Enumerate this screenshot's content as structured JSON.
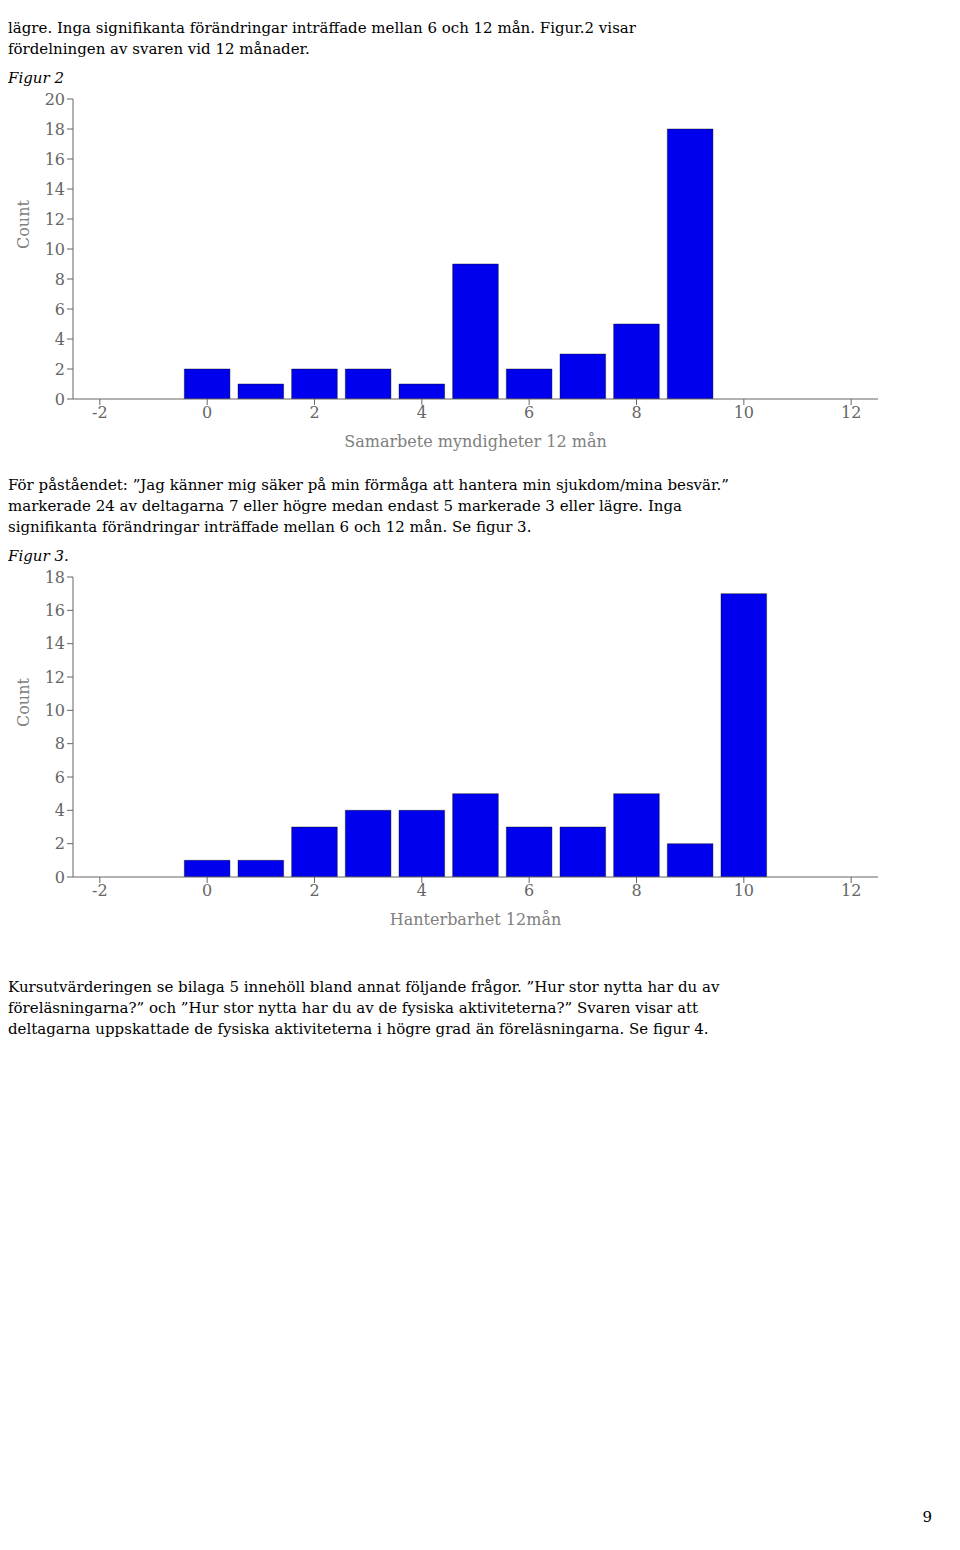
{
  "chart_data": [
    {
      "type": "bar",
      "annotations": [
        "lägre. Inga signifikanta förändringar inträffade mellan 6 och 12 mån. Figur.2 visar",
        "fördelningen av svaren vid 12 månader."
      ],
      "title": "Figur 2",
      "xlabel": "Samarbete myndigheter 12 mån",
      "ylabel": "Count",
      "x": [
        0,
        1,
        2,
        3,
        4,
        5,
        6,
        7,
        8,
        9,
        10
      ],
      "values": [
        2,
        1,
        2,
        2,
        1,
        9,
        2,
        3,
        5,
        18,
        0
      ],
      "color": "#0000EE",
      "xlim": [
        -2.5,
        12.5
      ],
      "ylim": [
        0,
        20
      ],
      "xticks": [
        -2,
        0,
        2,
        4,
        6,
        8,
        10,
        12
      ],
      "yticks": [
        0,
        2,
        4,
        6,
        8,
        10,
        12,
        14,
        16,
        18,
        20
      ],
      "grid": false
    },
    {
      "type": "bar",
      "annotations": [
        "För påståendet: ”Jag känner mig säker på min förmåga att hantera min sjukdom/mina besvär.”",
        "markerade 24 av deltagarna 7 eller högre medan endast 5 markerade 3 eller lägre. Inga",
        "signifikanta förändringar inträffade mellan 6 och 12 mån. Se figur 3."
      ],
      "title": "Figur 3.",
      "xlabel": "Hanterbarhet 12mån",
      "ylabel": "Count",
      "x": [
        0,
        1,
        2,
        3,
        4,
        5,
        6,
        7,
        8,
        9,
        10
      ],
      "values": [
        1,
        1,
        3,
        4,
        4,
        5,
        3,
        3,
        5,
        2,
        17
      ],
      "color": "#0000EE",
      "xlim": [
        -2.5,
        12.5
      ],
      "ylim": [
        0,
        18
      ],
      "xticks": [
        -2,
        0,
        2,
        4,
        6,
        8,
        10,
        12
      ],
      "yticks": [
        0,
        2,
        4,
        6,
        8,
        10,
        12,
        14,
        16,
        18
      ],
      "grid": false
    }
  ],
  "annotations": [
    "Kursutvärderingen se bilaga 5 innehöll bland annat följande frågor. ”Hur stor nytta har du av",
    "föreläsningarna?” och ”Hur stor nytta har du av de fysiska aktiviteterna?” Svaren visar att",
    "deltagarna uppskattade de fysiska aktiviteterna i högre grad än föreläsningarna. Se figur 4.",
    "9"
  ]
}
